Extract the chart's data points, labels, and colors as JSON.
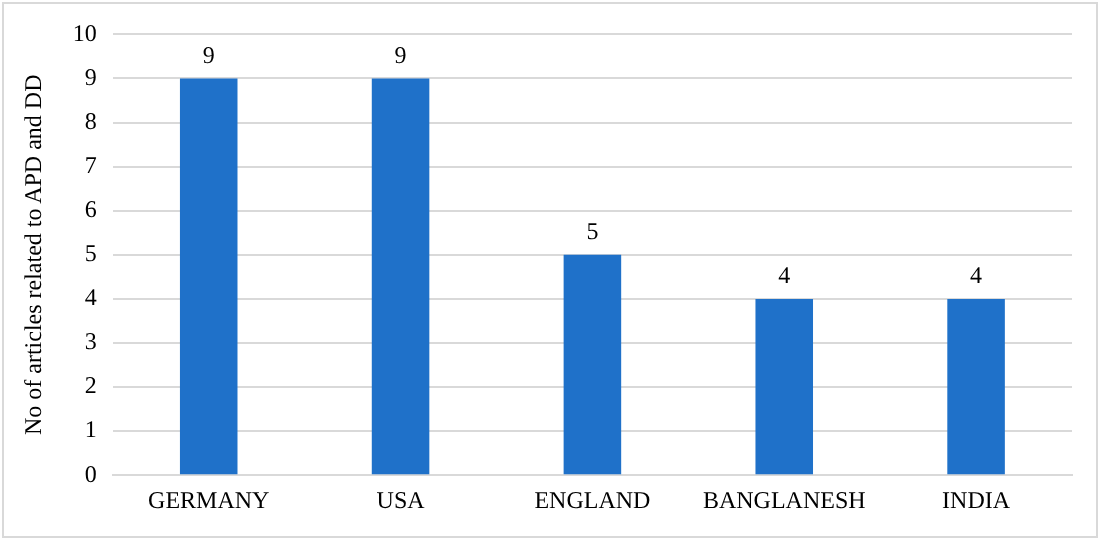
{
  "chart_data": {
    "type": "bar",
    "ylabel": "No of articles related to APD and DD",
    "categories": [
      "GERMANY",
      "USA",
      "ENGLAND",
      "BANGLANESH",
      "INDIA"
    ],
    "values": [
      9,
      9,
      5,
      4,
      4
    ],
    "color": "#1f71c9",
    "ylim": [
      0,
      10
    ],
    "yticks": [
      0,
      1,
      2,
      3,
      4,
      5,
      6,
      7,
      8,
      9,
      10
    ],
    "grid": "y",
    "data_labels": true,
    "legend": false
  }
}
